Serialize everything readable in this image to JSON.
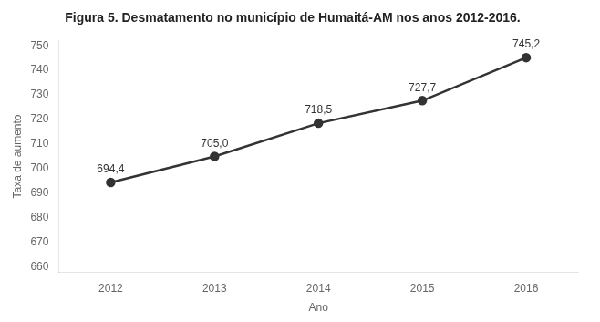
{
  "chart_data": {
    "type": "line",
    "title": "Figura 5. Desmatamento no município de Humaitá-AM nos anos 2012-2016.",
    "x": [
      2012,
      2013,
      2014,
      2015,
      2016
    ],
    "values": [
      694.4,
      705.0,
      718.5,
      727.7,
      745.2
    ],
    "value_labels": [
      "694,4",
      "705,0",
      "718,5",
      "727,7",
      "745,2"
    ],
    "data_labels": true,
    "xlabel": "Ano",
    "ylabel": "Taxa de aumento",
    "xlim": [
      2011.5,
      2016.5
    ],
    "xticks": [
      2012,
      2013,
      2014,
      2015,
      2016
    ],
    "ylim": [
      658,
      752
    ],
    "yticks": [
      660,
      670,
      680,
      690,
      700,
      710,
      720,
      730,
      740,
      750
    ],
    "color": "#333333",
    "marker": "circle",
    "grid": false
  }
}
